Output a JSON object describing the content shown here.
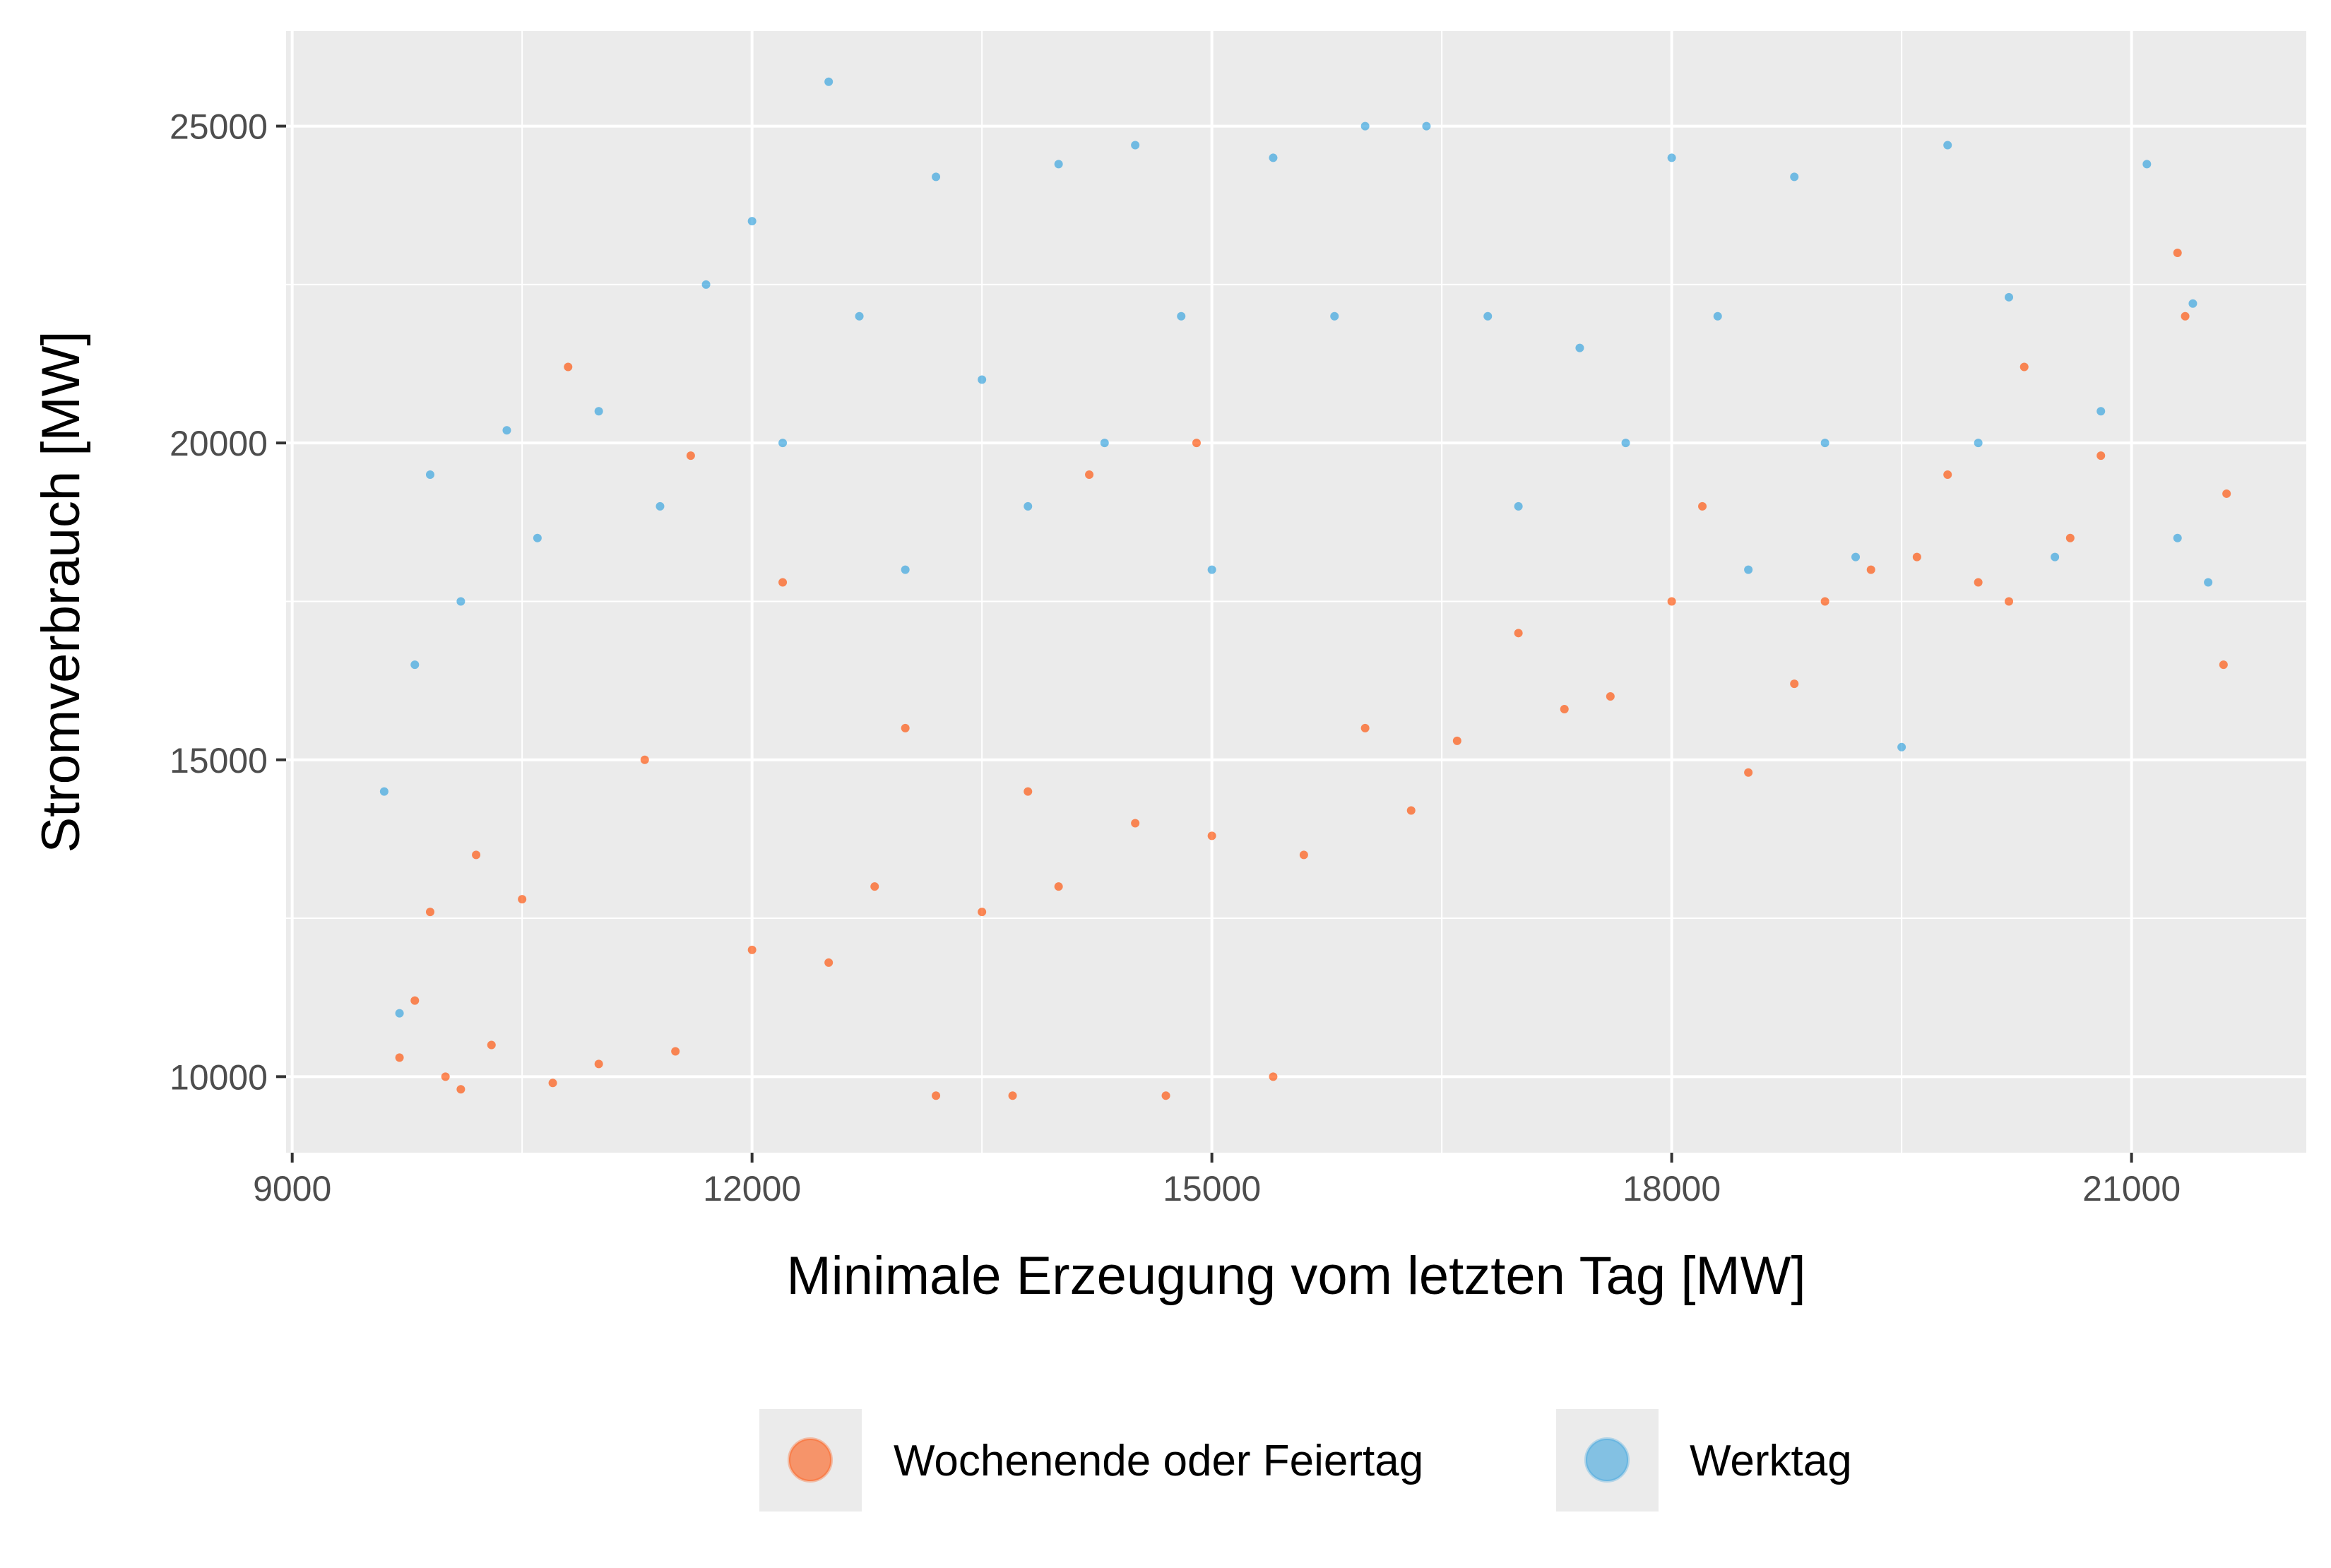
{
  "chart_data": {
    "type": "scatter",
    "title": "",
    "xlabel": "Minimale Erzeugung vom letzten Tag [MW]",
    "ylabel": "Stromverbrauch [MW]",
    "xlim": [
      8960,
      22140
    ],
    "ylim": [
      8800,
      26500
    ],
    "x_ticks": [
      9000,
      12000,
      15000,
      18000,
      21000
    ],
    "x_tick_labels": [
      "9000",
      "12000",
      "15000",
      "18000",
      "21000"
    ],
    "y_ticks": [
      10000,
      15000,
      20000,
      25000
    ],
    "y_tick_labels": [
      "10000",
      "15000",
      "20000",
      "25000"
    ],
    "grid": true,
    "legend_position": "bottom",
    "series": [
      {
        "name": "Wochenende oder Feiertag",
        "color": "#FF4D00",
        "points": [
          [
            9700,
            10300
          ],
          [
            9800,
            11200
          ],
          [
            9900,
            12600
          ],
          [
            10000,
            10000
          ],
          [
            10100,
            9800
          ],
          [
            10200,
            13500
          ],
          [
            10300,
            10500
          ],
          [
            10500,
            12800
          ],
          [
            10700,
            9900
          ],
          [
            10800,
            21200
          ],
          [
            11000,
            10200
          ],
          [
            11300,
            15000
          ],
          [
            11500,
            10400
          ],
          [
            11600,
            19800
          ],
          [
            12000,
            12000
          ],
          [
            12200,
            17800
          ],
          [
            12500,
            11800
          ],
          [
            12800,
            13000
          ],
          [
            13000,
            15500
          ],
          [
            13200,
            9700
          ],
          [
            13500,
            12600
          ],
          [
            13700,
            9700
          ],
          [
            13800,
            14500
          ],
          [
            14000,
            13000
          ],
          [
            14200,
            19500
          ],
          [
            14500,
            14000
          ],
          [
            14700,
            9700
          ],
          [
            14900,
            20000
          ],
          [
            15000,
            13800
          ],
          [
            15400,
            10000
          ],
          [
            15600,
            13500
          ],
          [
            16000,
            15500
          ],
          [
            16300,
            14200
          ],
          [
            16600,
            15300
          ],
          [
            17000,
            17000
          ],
          [
            17300,
            15800
          ],
          [
            17600,
            16000
          ],
          [
            18000,
            17500
          ],
          [
            18200,
            19000
          ],
          [
            18500,
            14800
          ],
          [
            18800,
            16200
          ],
          [
            19000,
            17500
          ],
          [
            19300,
            18000
          ],
          [
            19600,
            18200
          ],
          [
            19800,
            19500
          ],
          [
            20000,
            17800
          ],
          [
            20200,
            17500
          ],
          [
            20300,
            21200
          ],
          [
            20600,
            18500
          ],
          [
            20800,
            19800
          ],
          [
            21300,
            23000
          ],
          [
            21350,
            22000
          ],
          [
            21600,
            16500
          ],
          [
            21620,
            19200
          ]
        ]
      },
      {
        "name": "Werktag",
        "color": "#2E9FDD",
        "points": [
          [
            9600,
            14500
          ],
          [
            9700,
            11000
          ],
          [
            9800,
            16500
          ],
          [
            9900,
            19500
          ],
          [
            10100,
            17500
          ],
          [
            10400,
            20200
          ],
          [
            10600,
            18500
          ],
          [
            11000,
            20500
          ],
          [
            11400,
            19000
          ],
          [
            11700,
            22500
          ],
          [
            12000,
            23500
          ],
          [
            12200,
            20000
          ],
          [
            12500,
            25700
          ],
          [
            12700,
            22000
          ],
          [
            13000,
            18000
          ],
          [
            13200,
            24200
          ],
          [
            13500,
            21000
          ],
          [
            13800,
            19000
          ],
          [
            14000,
            24400
          ],
          [
            14300,
            20000
          ],
          [
            14500,
            24700
          ],
          [
            14800,
            22000
          ],
          [
            15000,
            18000
          ],
          [
            15400,
            24500
          ],
          [
            15800,
            22000
          ],
          [
            16000,
            25000
          ],
          [
            16400,
            25000
          ],
          [
            16800,
            22000
          ],
          [
            17000,
            19000
          ],
          [
            17400,
            21500
          ],
          [
            17700,
            20000
          ],
          [
            18000,
            24500
          ],
          [
            18300,
            22000
          ],
          [
            18500,
            18000
          ],
          [
            18800,
            24200
          ],
          [
            19000,
            20000
          ],
          [
            19200,
            18200
          ],
          [
            19500,
            15200
          ],
          [
            19800,
            24700
          ],
          [
            20000,
            20000
          ],
          [
            20200,
            22300
          ],
          [
            20500,
            18200
          ],
          [
            20800,
            20500
          ],
          [
            21100,
            24400
          ],
          [
            21300,
            18500
          ],
          [
            21400,
            22200
          ],
          [
            21500,
            17800
          ]
        ]
      }
    ]
  },
  "legend": {
    "items": [
      {
        "label": "Wochenende oder Feiertag",
        "color": "#FF4D00"
      },
      {
        "label": "Werktag",
        "color": "#2E9FDD"
      }
    ]
  }
}
